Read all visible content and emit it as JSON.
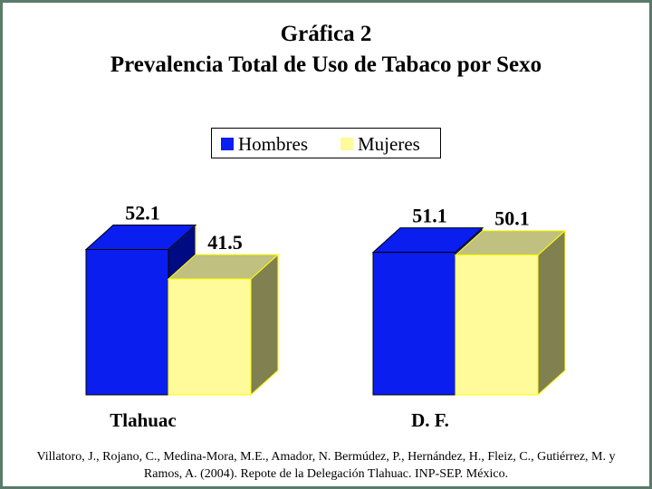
{
  "chart_data": {
    "type": "bar",
    "title": "Gráfica 2",
    "subtitle": "Prevalencia Total de Uso de Tabaco por Sexo",
    "categories": [
      "Tlahuac",
      "D. F."
    ],
    "series": [
      {
        "name": "Hombres",
        "values": [
          52.1,
          51.1
        ],
        "color": "#0a1ef0"
      },
      {
        "name": "Mujeres",
        "values": [
          41.5,
          50.1
        ],
        "color": "#fffa9a"
      }
    ],
    "data_labels": [
      [
        "52.1",
        "41.5"
      ],
      [
        "51.1",
        "50.1"
      ]
    ],
    "legend_position": "top-center",
    "three_d": true,
    "grid": false,
    "ylim": [
      0,
      100
    ]
  },
  "source": "Villatoro, J., Rojano, C., Medina-Mora, M.E., Amador, N. Bermúdez, P., Hernández, H., Fleiz, C., Gutiérrez, M. y Ramos, A. (2004). Repote de la Delegación Tlahuac. INP-SEP. México."
}
